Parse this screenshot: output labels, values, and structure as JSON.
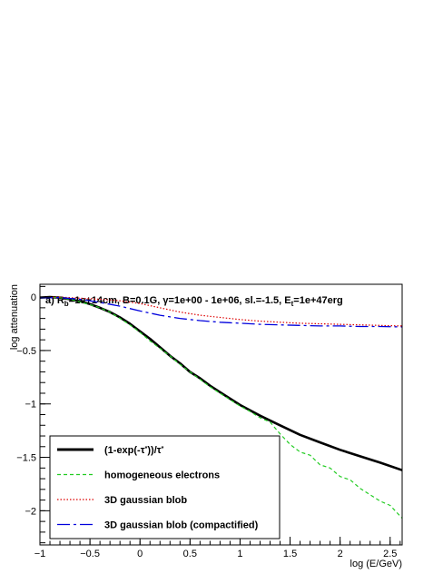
{
  "chart_data": {
    "type": "line",
    "title_parts": [
      "a) R",
      "b",
      "=1e+14cm, B=0.1G, γ=1e+00 - 1e+06, sl.=-1.5, E",
      "t",
      "=1e+47erg"
    ],
    "xlabel": "log (E/GeV)",
    "ylabel": "log attenuation",
    "xlim": [
      -1,
      2.62
    ],
    "ylim": [
      -2.32,
      0.12
    ],
    "x_ticks": [
      -1,
      -0.5,
      0,
      0.5,
      1,
      1.5,
      2,
      2.5
    ],
    "x_tick_labels": [
      "−1",
      "−0.5",
      "0",
      "0.5",
      "1",
      "1.5",
      "2",
      "2.5"
    ],
    "y_ticks": [
      0,
      -0.5,
      -1,
      -1.5,
      -2
    ],
    "y_tick_labels": [
      "0",
      "−0.5",
      "−1",
      "−1.5",
      "−2"
    ],
    "grid": false,
    "legend_position": "bottom-left",
    "series": [
      {
        "name_parts": [
          "(1-exp(-τ",
          "*",
          "))/τ",
          "*"
        ],
        "color": "#000000",
        "style": "solid",
        "x": [
          -1.0,
          -0.9,
          -0.8,
          -0.7,
          -0.6,
          -0.5,
          -0.4,
          -0.3,
          -0.2,
          -0.1,
          0.0,
          0.1,
          0.2,
          0.3,
          0.4,
          0.5,
          0.6,
          0.7,
          0.8,
          0.9,
          1.0,
          1.2,
          1.4,
          1.6,
          1.8,
          2.0,
          2.2,
          2.4,
          2.62
        ],
        "y": [
          -0.005,
          0.0,
          -0.005,
          -0.02,
          -0.04,
          -0.065,
          -0.1,
          -0.14,
          -0.19,
          -0.25,
          -0.32,
          -0.39,
          -0.47,
          -0.55,
          -0.62,
          -0.7,
          -0.76,
          -0.83,
          -0.89,
          -0.95,
          -1.01,
          -1.11,
          -1.2,
          -1.29,
          -1.36,
          -1.43,
          -1.49,
          -1.55,
          -1.62
        ]
      },
      {
        "name_parts": [
          "homogeneous electrons"
        ],
        "color": "#22cc22",
        "style": "dashed",
        "x": [
          -1.0,
          -0.9,
          -0.8,
          -0.7,
          -0.6,
          -0.5,
          -0.4,
          -0.3,
          -0.2,
          -0.1,
          0.0,
          0.1,
          0.2,
          0.3,
          0.4,
          0.5,
          0.6,
          0.7,
          0.8,
          0.9,
          1.0,
          1.1,
          1.2,
          1.3,
          1.4,
          1.5,
          1.6,
          1.7,
          1.8,
          1.9,
          2.0,
          2.1,
          2.2,
          2.3,
          2.4,
          2.5,
          2.62
        ],
        "y": [
          -0.005,
          0.0,
          -0.005,
          -0.02,
          -0.045,
          -0.07,
          -0.1,
          -0.14,
          -0.2,
          -0.26,
          -0.33,
          -0.41,
          -0.48,
          -0.55,
          -0.63,
          -0.7,
          -0.77,
          -0.84,
          -0.9,
          -0.96,
          -1.02,
          -1.07,
          -1.13,
          -1.17,
          -1.28,
          -1.38,
          -1.45,
          -1.48,
          -1.57,
          -1.6,
          -1.68,
          -1.71,
          -1.79,
          -1.85,
          -1.91,
          -1.95,
          -2.07
        ]
      },
      {
        "name_parts": [
          "3D gaussian blob"
        ],
        "color": "#dd0000",
        "style": "dotted",
        "x": [
          -1.0,
          -0.8,
          -0.6,
          -0.4,
          -0.2,
          0.0,
          0.2,
          0.4,
          0.6,
          0.8,
          1.0,
          1.2,
          1.4,
          1.6,
          1.8,
          2.0,
          2.2,
          2.4,
          2.62
        ],
        "y": [
          0.0,
          0.0,
          -0.01,
          -0.02,
          -0.035,
          -0.06,
          -0.1,
          -0.14,
          -0.17,
          -0.19,
          -0.21,
          -0.225,
          -0.235,
          -0.245,
          -0.25,
          -0.255,
          -0.26,
          -0.265,
          -0.27
        ]
      },
      {
        "name_parts": [
          "3D gaussian blob (compactified)"
        ],
        "color": "#0000dd",
        "style": "dashdot",
        "x": [
          -1.0,
          -0.8,
          -0.6,
          -0.4,
          -0.2,
          0.0,
          0.2,
          0.4,
          0.6,
          0.8,
          1.0,
          1.2,
          1.4,
          1.6,
          1.8,
          2.0,
          2.2,
          2.4,
          2.62
        ],
        "y": [
          -0.005,
          -0.005,
          -0.02,
          -0.05,
          -0.085,
          -0.13,
          -0.17,
          -0.2,
          -0.22,
          -0.235,
          -0.245,
          -0.255,
          -0.26,
          -0.265,
          -0.27,
          -0.27,
          -0.275,
          -0.275,
          -0.28
        ]
      }
    ]
  }
}
